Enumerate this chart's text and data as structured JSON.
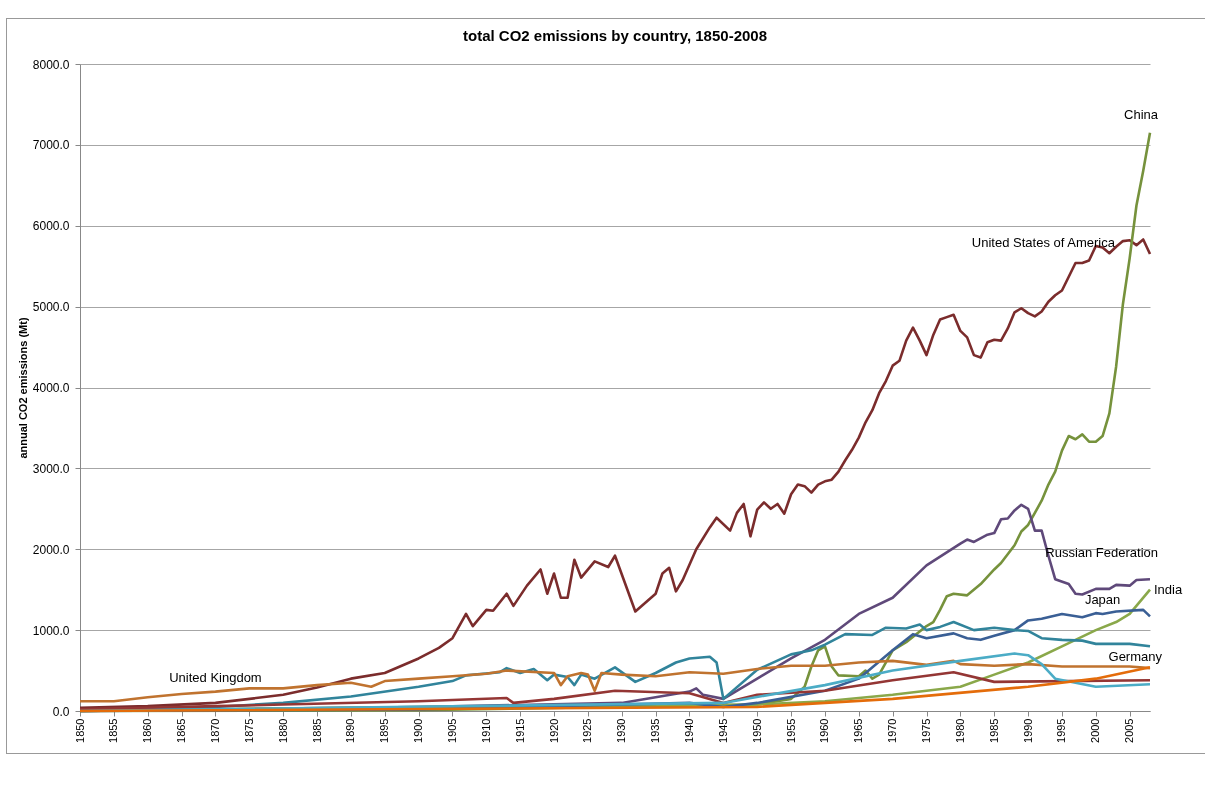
{
  "chart_data": {
    "type": "line",
    "title": "total CO2 emissions by country, 1850-2008",
    "ylabel": "annual CO2 emissions (Mt)",
    "xlim": [
      1850,
      2008
    ],
    "xticks": [
      1850,
      1855,
      1860,
      1865,
      1870,
      1875,
      1880,
      1885,
      1890,
      1895,
      1900,
      1905,
      1910,
      1915,
      1920,
      1925,
      1930,
      1935,
      1940,
      1945,
      1950,
      1955,
      1960,
      1965,
      1970,
      1975,
      1980,
      1985,
      1990,
      1995,
      2000,
      2005
    ],
    "ylim": [
      0,
      8000
    ],
    "yticks": [
      {
        "value": 0,
        "label": "0.0"
      },
      {
        "value": 1000,
        "label": "1000.0"
      },
      {
        "value": 2000,
        "label": "2000.0"
      },
      {
        "value": 3000,
        "label": "3000.0"
      },
      {
        "value": 4000,
        "label": "4000.0"
      },
      {
        "value": 5000,
        "label": "5000.0"
      },
      {
        "value": 6000,
        "label": "6000.0"
      },
      {
        "value": 7000,
        "label": "7000.0"
      },
      {
        "value": 8000,
        "label": "8000.0"
      }
    ],
    "grid": "y",
    "series": [
      {
        "name": "United States of America",
        "color": "#7b2c2c",
        "x": [
          1850,
          1860,
          1870,
          1880,
          1885,
          1890,
          1895,
          1900,
          1903,
          1905,
          1907,
          1908,
          1910,
          1911,
          1913,
          1914,
          1916,
          1918,
          1919,
          1920,
          1921,
          1922,
          1923,
          1924,
          1926,
          1928,
          1929,
          1932,
          1935,
          1936,
          1937,
          1938,
          1939,
          1941,
          1943,
          1944,
          1946,
          1947,
          1948,
          1949,
          1950,
          1951,
          1952,
          1953,
          1954,
          1955,
          1956,
          1957,
          1958,
          1959,
          1960,
          1961,
          1962,
          1963,
          1964,
          1965,
          1966,
          1967,
          1968,
          1969,
          1970,
          1971,
          1972,
          1973,
          1974,
          1975,
          1976,
          1977,
          1978,
          1979,
          1980,
          1981,
          1982,
          1983,
          1984,
          1985,
          1986,
          1987,
          1988,
          1989,
          1990,
          1991,
          1992,
          1993,
          1994,
          1995,
          1996,
          1997,
          1998,
          1999,
          2000,
          2001,
          2002,
          2003,
          2004,
          2005,
          2006,
          2007,
          2008
        ],
        "values": [
          40,
          60,
          100,
          200,
          290,
          400,
          470,
          650,
          780,
          900,
          1200,
          1050,
          1250,
          1240,
          1450,
          1300,
          1550,
          1750,
          1450,
          1700,
          1400,
          1400,
          1870,
          1650,
          1850,
          1780,
          1920,
          1230,
          1450,
          1700,
          1770,
          1480,
          1620,
          2000,
          2270,
          2390,
          2230,
          2450,
          2560,
          2160,
          2490,
          2580,
          2500,
          2560,
          2440,
          2680,
          2800,
          2780,
          2700,
          2800,
          2840,
          2860,
          2960,
          3100,
          3230,
          3380,
          3570,
          3720,
          3930,
          4080,
          4270,
          4330,
          4580,
          4740,
          4580,
          4400,
          4650,
          4840,
          4870,
          4900,
          4700,
          4620,
          4400,
          4370,
          4560,
          4590,
          4580,
          4730,
          4930,
          4980,
          4920,
          4880,
          4940,
          5060,
          5140,
          5200,
          5370,
          5540,
          5540,
          5570,
          5750,
          5730,
          5660,
          5740,
          5810,
          5820,
          5760,
          5830,
          5650
        ]
      },
      {
        "name": "China",
        "color": "#76923c",
        "x": [
          1850,
          1900,
          1950,
          1955,
          1957,
          1958,
          1959,
          1960,
          1961,
          1962,
          1965,
          1966,
          1967,
          1968,
          1970,
          1972,
          1975,
          1976,
          1977,
          1978,
          1979,
          1981,
          1983,
          1985,
          1986,
          1988,
          1989,
          1990,
          1991,
          1992,
          1993,
          1994,
          1995,
          1996,
          1997,
          1998,
          1999,
          2000,
          2001,
          2002,
          2003,
          2004,
          2005,
          2006,
          2007,
          2008
        ],
        "values": [
          0,
          10,
          80,
          150,
          300,
          550,
          750,
          800,
          550,
          440,
          430,
          500,
          400,
          450,
          750,
          850,
          1050,
          1100,
          1250,
          1420,
          1450,
          1430,
          1570,
          1750,
          1830,
          2050,
          2220,
          2300,
          2450,
          2600,
          2800,
          2960,
          3220,
          3400,
          3360,
          3420,
          3330,
          3330,
          3400,
          3680,
          4260,
          5030,
          5600,
          6250,
          6680,
          7150
        ]
      },
      {
        "name": "Russian Federation",
        "color": "#5f497a",
        "x": [
          1850,
          1900,
          1930,
          1940,
          1941,
          1942,
          1945,
          1950,
          1955,
          1960,
          1965,
          1970,
          1975,
          1980,
          1981,
          1982,
          1984,
          1985,
          1986,
          1987,
          1988,
          1989,
          1990,
          1991,
          1992,
          1993,
          1994,
          1996,
          1997,
          1998,
          2000,
          2002,
          2003,
          2005,
          2006,
          2008
        ],
        "values": [
          0,
          50,
          100,
          240,
          280,
          200,
          150,
          400,
          650,
          880,
          1200,
          1400,
          1800,
          2070,
          2120,
          2090,
          2180,
          2200,
          2370,
          2380,
          2480,
          2550,
          2500,
          2230,
          2230,
          1920,
          1630,
          1570,
          1450,
          1440,
          1510,
          1510,
          1560,
          1550,
          1620,
          1630
        ]
      },
      {
        "name": "India",
        "color": "#8aa84a",
        "x": [
          1850,
          1900,
          1950,
          1960,
          1970,
          1980,
          1985,
          1990,
          1995,
          2000,
          2003,
          2005,
          2008
        ],
        "values": [
          0,
          50,
          80,
          120,
          200,
          300,
          450,
          600,
          800,
          1000,
          1100,
          1200,
          1500
        ]
      },
      {
        "name": "Japan",
        "color": "#3a5f95",
        "x": [
          1850,
          1900,
          1940,
          1945,
          1950,
          1960,
          1965,
          1970,
          1973,
          1975,
          1979,
          1981,
          1983,
          1985,
          1988,
          1990,
          1992,
          1995,
          1998,
          2000,
          2001,
          2003,
          2007,
          2008
        ],
        "values": [
          0,
          20,
          100,
          50,
          100,
          250,
          400,
          750,
          950,
          900,
          960,
          900,
          880,
          930,
          1000,
          1120,
          1140,
          1200,
          1160,
          1210,
          1200,
          1230,
          1250,
          1170
        ]
      },
      {
        "name": "Germany",
        "color": "#31849b",
        "x": [
          1850,
          1870,
          1880,
          1890,
          1900,
          1905,
          1907,
          1912,
          1913,
          1915,
          1917,
          1919,
          1920,
          1922,
          1923,
          1924,
          1926,
          1929,
          1932,
          1935,
          1938,
          1940,
          1943,
          1944,
          1945,
          1950,
          1955,
          1958,
          1960,
          1963,
          1967,
          1969,
          1972,
          1974,
          1975,
          1977,
          1979,
          1982,
          1985,
          1988,
          1990,
          1992,
          1995,
          1998,
          2000,
          2005,
          2008
        ],
        "values": [
          10,
          50,
          100,
          180,
          300,
          370,
          440,
          480,
          530,
          470,
          520,
          380,
          450,
          420,
          320,
          450,
          400,
          540,
          360,
          470,
          600,
          650,
          670,
          600,
          150,
          510,
          700,
          750,
          820,
          950,
          940,
          1030,
          1020,
          1070,
          1000,
          1040,
          1100,
          1000,
          1030,
          1000,
          990,
          900,
          880,
          870,
          830,
          830,
          800
        ]
      },
      {
        "name": "United Kingdom",
        "color": "#c0732f",
        "x": [
          1850,
          1855,
          1860,
          1865,
          1870,
          1875,
          1880,
          1885,
          1890,
          1893,
          1895,
          1900,
          1905,
          1910,
          1913,
          1920,
          1921,
          1922,
          1924,
          1925,
          1926,
          1927,
          1930,
          1935,
          1940,
          1945,
          1950,
          1955,
          1960,
          1965,
          1970,
          1975,
          1979,
          1980,
          1985,
          1990,
          1995,
          2000,
          2005,
          2008
        ],
        "values": [
          120,
          120,
          170,
          210,
          240,
          280,
          280,
          320,
          350,
          300,
          370,
          400,
          430,
          460,
          500,
          470,
          320,
          430,
          470,
          450,
          250,
          470,
          450,
          430,
          480,
          460,
          520,
          560,
          560,
          600,
          620,
          570,
          620,
          580,
          560,
          580,
          550,
          550,
          550,
          530
        ]
      },
      {
        "color": "#943634",
        "x": [
          1850,
          1870,
          1880,
          1900,
          1913,
          1914,
          1920,
          1929,
          1940,
          1945,
          1950,
          1960,
          1970,
          1979,
          1985,
          2008
        ],
        "values": [
          20,
          60,
          80,
          120,
          160,
          100,
          150,
          250,
          220,
          100,
          200,
          250,
          380,
          480,
          360,
          380
        ]
      },
      {
        "color": "#4bacc6",
        "x": [
          1850,
          1945,
          1960,
          1970,
          1980,
          1988,
          1990,
          1992,
          1994,
          2000,
          2008
        ],
        "values": [
          0,
          100,
          320,
          500,
          620,
          710,
          690,
          580,
          400,
          300,
          330
        ]
      },
      {
        "color": "#e46c0a",
        "x": [
          1850,
          1950,
          1970,
          1990,
          2000,
          2008
        ],
        "values": [
          0,
          50,
          150,
          300,
          400,
          540
        ]
      }
    ]
  }
}
